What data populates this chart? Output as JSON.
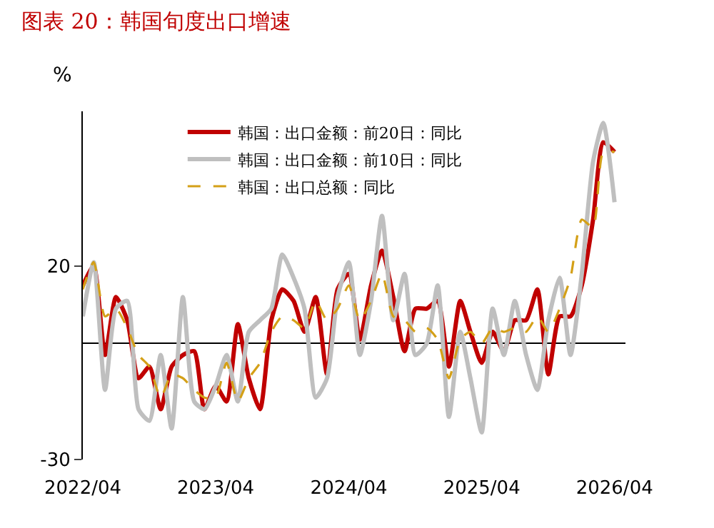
{
  "chart_data": {
    "type": "line",
    "title": "图表 20：韩国旬度出口增速",
    "ylabel": "%",
    "x": [
      "2022-04",
      "2022-05",
      "2022-06",
      "2022-07",
      "2022-08",
      "2022-09",
      "2022-10",
      "2022-11",
      "2022-12",
      "2023-01",
      "2023-02",
      "2023-03",
      "2023-04",
      "2023-05",
      "2023-06",
      "2023-07",
      "2023-08",
      "2023-09",
      "2023-10",
      "2023-11",
      "2023-12",
      "2024-01",
      "2024-02",
      "2024-03",
      "2024-04",
      "2024-05",
      "2024-06",
      "2024-07",
      "2024-08",
      "2024-09",
      "2024-10",
      "2024-11",
      "2024-12",
      "2025-01",
      "2025-02",
      "2025-03",
      "2025-04",
      "2025-05",
      "2025-06",
      "2025-07",
      "2025-08",
      "2025-09",
      "2025-10",
      "2025-11",
      "2025-12",
      "2026-01",
      "2026-02",
      "2026-03",
      "2026-04"
    ],
    "series": [
      {
        "name": "韩国：出口金额：前20日：同比",
        "color": "#c00000",
        "line_style": "solid",
        "values": [
          15,
          20,
          -3,
          12,
          6,
          -9,
          -6,
          -17,
          -6,
          -3,
          -2,
          -17,
          -11,
          -15,
          5,
          -9,
          -17,
          6,
          14,
          11,
          3,
          12,
          -8,
          14,
          18,
          1,
          15,
          24,
          12,
          -2,
          9,
          9,
          11,
          -6,
          11,
          3,
          -5,
          3,
          -2,
          6,
          6,
          14,
          -8,
          7,
          7,
          15,
          32,
          52,
          49.5
        ]
      },
      {
        "name": "韩国：出口金额：前10日：同比",
        "color": "#bfbfbf",
        "line_style": "solid",
        "values": [
          7,
          21,
          -12,
          9,
          11,
          -17,
          -20,
          -3,
          -22,
          12,
          -15,
          -17,
          -11,
          -3,
          -15,
          3,
          6,
          9,
          23,
          17,
          9,
          -14,
          -9,
          12,
          21,
          -3,
          11,
          33,
          6,
          18,
          -3,
          0,
          15,
          -19,
          3,
          -9,
          -23,
          9,
          -3,
          11,
          -3,
          -12,
          6,
          17,
          -3,
          18,
          47,
          57,
          36.5
        ]
      },
      {
        "name": "韩国：出口总额：同比",
        "color": "#d4a017",
        "line_style": "dashed",
        "values": [
          14,
          21,
          7,
          9,
          4,
          -3,
          -6,
          -14,
          -8,
          -9,
          -12,
          -14,
          -14,
          -5,
          -15,
          -9,
          -5,
          3,
          7,
          6,
          4,
          11,
          6,
          9,
          15,
          6,
          11,
          18,
          7,
          6,
          3,
          4,
          1,
          -9,
          1,
          3,
          0,
          4,
          3,
          4,
          3,
          7,
          3,
          9,
          17,
          32,
          30,
          49.5,
          49.5
        ]
      }
    ],
    "xlim": [
      "2022-04",
      "2026-05"
    ],
    "xticks": [
      {
        "value": "2022-04",
        "label": "2022/04"
      },
      {
        "value": "2023-04",
        "label": "2023/04"
      },
      {
        "value": "2024-04",
        "label": "2024/04"
      },
      {
        "value": "2025-04",
        "label": "2025/04"
      },
      {
        "value": "2026-04",
        "label": "2026/04"
      }
    ],
    "ylim": [
      -30,
      60
    ],
    "yticks": [
      -30,
      20
    ],
    "legend": "top"
  }
}
